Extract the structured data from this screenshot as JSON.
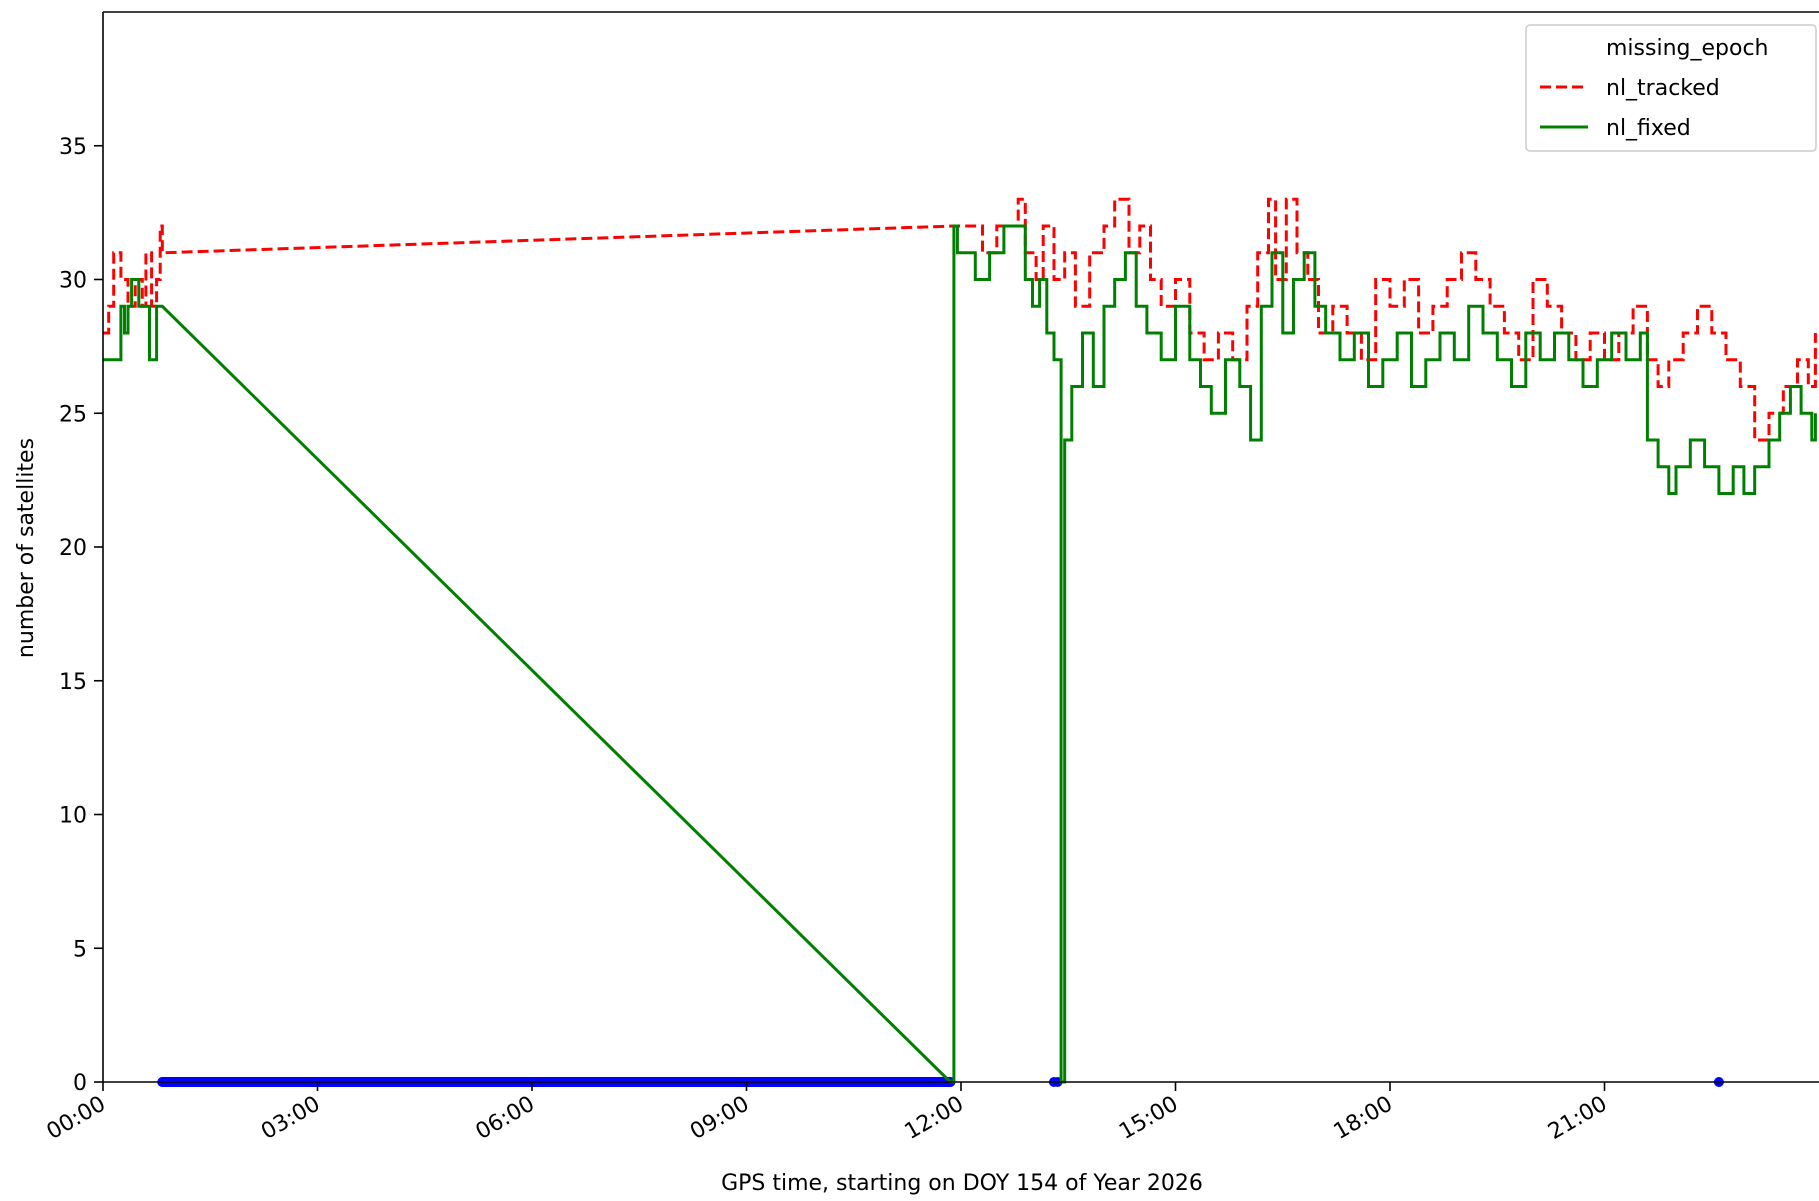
{
  "chart_data": {
    "type": "line",
    "title": "",
    "xlabel": "GPS time, starting on DOY 154 of Year 2026",
    "ylabel": "number of satellites",
    "xlim": [
      0,
      24
    ],
    "ylim": [
      0,
      40
    ],
    "x_tick_values": [
      0,
      3,
      6,
      9,
      12,
      15,
      18,
      21
    ],
    "x_tick_labels": [
      "00:00",
      "03:00",
      "06:00",
      "09:00",
      "12:00",
      "15:00",
      "18:00",
      "21:00"
    ],
    "y_ticks": [
      0,
      5,
      10,
      15,
      20,
      25,
      30,
      35
    ],
    "grid": false,
    "legend_position": "top-right",
    "legend": [
      "missing_epoch",
      "nl_tracked",
      "nl_fixed"
    ],
    "series": [
      {
        "name": "missing_epoch",
        "style": "markers",
        "color": "#0000ff",
        "points": [
          [
            0.83,
            0
          ],
          [
            0.9,
            0
          ],
          [
            1.0,
            0
          ],
          [
            1.2,
            0
          ],
          [
            1.5,
            0
          ],
          [
            2.0,
            0
          ],
          [
            2.5,
            0
          ],
          [
            3.0,
            0
          ],
          [
            3.5,
            0
          ],
          [
            4.0,
            0
          ],
          [
            4.5,
            0
          ],
          [
            5.0,
            0
          ],
          [
            5.5,
            0
          ],
          [
            6.0,
            0
          ],
          [
            6.5,
            0
          ],
          [
            7.0,
            0
          ],
          [
            7.5,
            0
          ],
          [
            8.0,
            0
          ],
          [
            8.5,
            0
          ],
          [
            9.0,
            0
          ],
          [
            9.5,
            0
          ],
          [
            10.0,
            0
          ],
          [
            10.5,
            0
          ],
          [
            11.0,
            0
          ],
          [
            11.5,
            0
          ],
          [
            11.85,
            0
          ],
          [
            13.3,
            0
          ],
          [
            13.35,
            0
          ],
          [
            22.6,
            0
          ]
        ]
      },
      {
        "name": "nl_tracked",
        "style": "dashed",
        "color": "#ff0000",
        "points": [
          [
            0.0,
            28
          ],
          [
            0.08,
            29
          ],
          [
            0.15,
            31
          ],
          [
            0.25,
            30
          ],
          [
            0.35,
            29
          ],
          [
            0.45,
            30
          ],
          [
            0.55,
            29
          ],
          [
            0.6,
            31
          ],
          [
            0.68,
            29
          ],
          [
            0.75,
            30
          ],
          [
            0.8,
            32
          ],
          [
            0.83,
            31
          ],
          [
            11.9,
            32
          ],
          [
            12.3,
            31
          ],
          [
            12.5,
            32
          ],
          [
            12.8,
            33
          ],
          [
            12.9,
            31
          ],
          [
            13.05,
            30
          ],
          [
            13.15,
            32
          ],
          [
            13.3,
            30
          ],
          [
            13.45,
            31
          ],
          [
            13.6,
            29
          ],
          [
            13.8,
            31
          ],
          [
            14.0,
            32
          ],
          [
            14.15,
            33
          ],
          [
            14.35,
            31
          ],
          [
            14.5,
            32
          ],
          [
            14.65,
            30
          ],
          [
            14.8,
            29
          ],
          [
            15.0,
            30
          ],
          [
            15.2,
            28
          ],
          [
            15.4,
            27
          ],
          [
            15.6,
            28
          ],
          [
            15.8,
            27
          ],
          [
            16.0,
            29
          ],
          [
            16.15,
            31
          ],
          [
            16.3,
            33
          ],
          [
            16.4,
            30
          ],
          [
            16.55,
            33
          ],
          [
            16.7,
            31
          ],
          [
            16.85,
            30
          ],
          [
            17.0,
            28
          ],
          [
            17.2,
            29
          ],
          [
            17.4,
            28
          ],
          [
            17.6,
            27
          ],
          [
            17.8,
            30
          ],
          [
            18.0,
            29
          ],
          [
            18.2,
            30
          ],
          [
            18.4,
            28
          ],
          [
            18.6,
            29
          ],
          [
            18.8,
            30
          ],
          [
            19.0,
            31
          ],
          [
            19.2,
            30
          ],
          [
            19.4,
            29
          ],
          [
            19.6,
            28
          ],
          [
            19.8,
            27
          ],
          [
            20.0,
            30
          ],
          [
            20.2,
            29
          ],
          [
            20.4,
            28
          ],
          [
            20.6,
            27
          ],
          [
            20.8,
            28
          ],
          [
            21.0,
            27
          ],
          [
            21.2,
            28
          ],
          [
            21.4,
            29
          ],
          [
            21.6,
            27
          ],
          [
            21.75,
            26
          ],
          [
            21.9,
            27
          ],
          [
            22.1,
            28
          ],
          [
            22.3,
            29
          ],
          [
            22.5,
            28
          ],
          [
            22.7,
            27
          ],
          [
            22.9,
            26
          ],
          [
            23.1,
            24
          ],
          [
            23.3,
            25
          ],
          [
            23.5,
            26
          ],
          [
            23.7,
            27
          ],
          [
            23.85,
            26
          ],
          [
            23.95,
            28
          ]
        ]
      },
      {
        "name": "nl_fixed",
        "style": "solid",
        "color": "#008000",
        "points": [
          [
            0.0,
            27
          ],
          [
            0.2,
            27
          ],
          [
            0.25,
            29
          ],
          [
            0.3,
            28
          ],
          [
            0.35,
            29
          ],
          [
            0.4,
            30
          ],
          [
            0.5,
            29
          ],
          [
            0.6,
            29
          ],
          [
            0.65,
            27
          ],
          [
            0.75,
            29
          ],
          [
            0.83,
            29
          ],
          [
            11.85,
            0
          ],
          [
            11.9,
            32
          ],
          [
            11.95,
            31
          ],
          [
            12.1,
            31
          ],
          [
            12.2,
            30
          ],
          [
            12.4,
            31
          ],
          [
            12.6,
            32
          ],
          [
            12.9,
            30
          ],
          [
            13.0,
            29
          ],
          [
            13.1,
            30
          ],
          [
            13.2,
            28
          ],
          [
            13.3,
            27
          ],
          [
            13.4,
            0
          ],
          [
            13.45,
            24
          ],
          [
            13.55,
            26
          ],
          [
            13.7,
            28
          ],
          [
            13.85,
            26
          ],
          [
            14.0,
            29
          ],
          [
            14.15,
            30
          ],
          [
            14.3,
            31
          ],
          [
            14.45,
            29
          ],
          [
            14.6,
            28
          ],
          [
            14.8,
            27
          ],
          [
            15.0,
            29
          ],
          [
            15.2,
            27
          ],
          [
            15.35,
            26
          ],
          [
            15.5,
            25
          ],
          [
            15.7,
            27
          ],
          [
            15.9,
            26
          ],
          [
            16.05,
            24
          ],
          [
            16.2,
            29
          ],
          [
            16.35,
            31
          ],
          [
            16.5,
            28
          ],
          [
            16.65,
            30
          ],
          [
            16.8,
            31
          ],
          [
            16.95,
            29
          ],
          [
            17.1,
            28
          ],
          [
            17.3,
            27
          ],
          [
            17.5,
            28
          ],
          [
            17.7,
            26
          ],
          [
            17.9,
            27
          ],
          [
            18.1,
            28
          ],
          [
            18.3,
            26
          ],
          [
            18.5,
            27
          ],
          [
            18.7,
            28
          ],
          [
            18.9,
            27
          ],
          [
            19.1,
            29
          ],
          [
            19.3,
            28
          ],
          [
            19.5,
            27
          ],
          [
            19.7,
            26
          ],
          [
            19.9,
            28
          ],
          [
            20.1,
            27
          ],
          [
            20.3,
            28
          ],
          [
            20.5,
            27
          ],
          [
            20.7,
            26
          ],
          [
            20.9,
            27
          ],
          [
            21.1,
            28
          ],
          [
            21.3,
            27
          ],
          [
            21.5,
            28
          ],
          [
            21.6,
            24
          ],
          [
            21.75,
            23
          ],
          [
            21.9,
            22
          ],
          [
            22.0,
            23
          ],
          [
            22.2,
            24
          ],
          [
            22.4,
            23
          ],
          [
            22.6,
            22
          ],
          [
            22.8,
            23
          ],
          [
            22.95,
            22
          ],
          [
            23.1,
            23
          ],
          [
            23.3,
            24
          ],
          [
            23.45,
            25
          ],
          [
            23.6,
            26
          ],
          [
            23.75,
            25
          ],
          [
            23.9,
            24
          ],
          [
            23.95,
            25
          ]
        ]
      }
    ]
  }
}
